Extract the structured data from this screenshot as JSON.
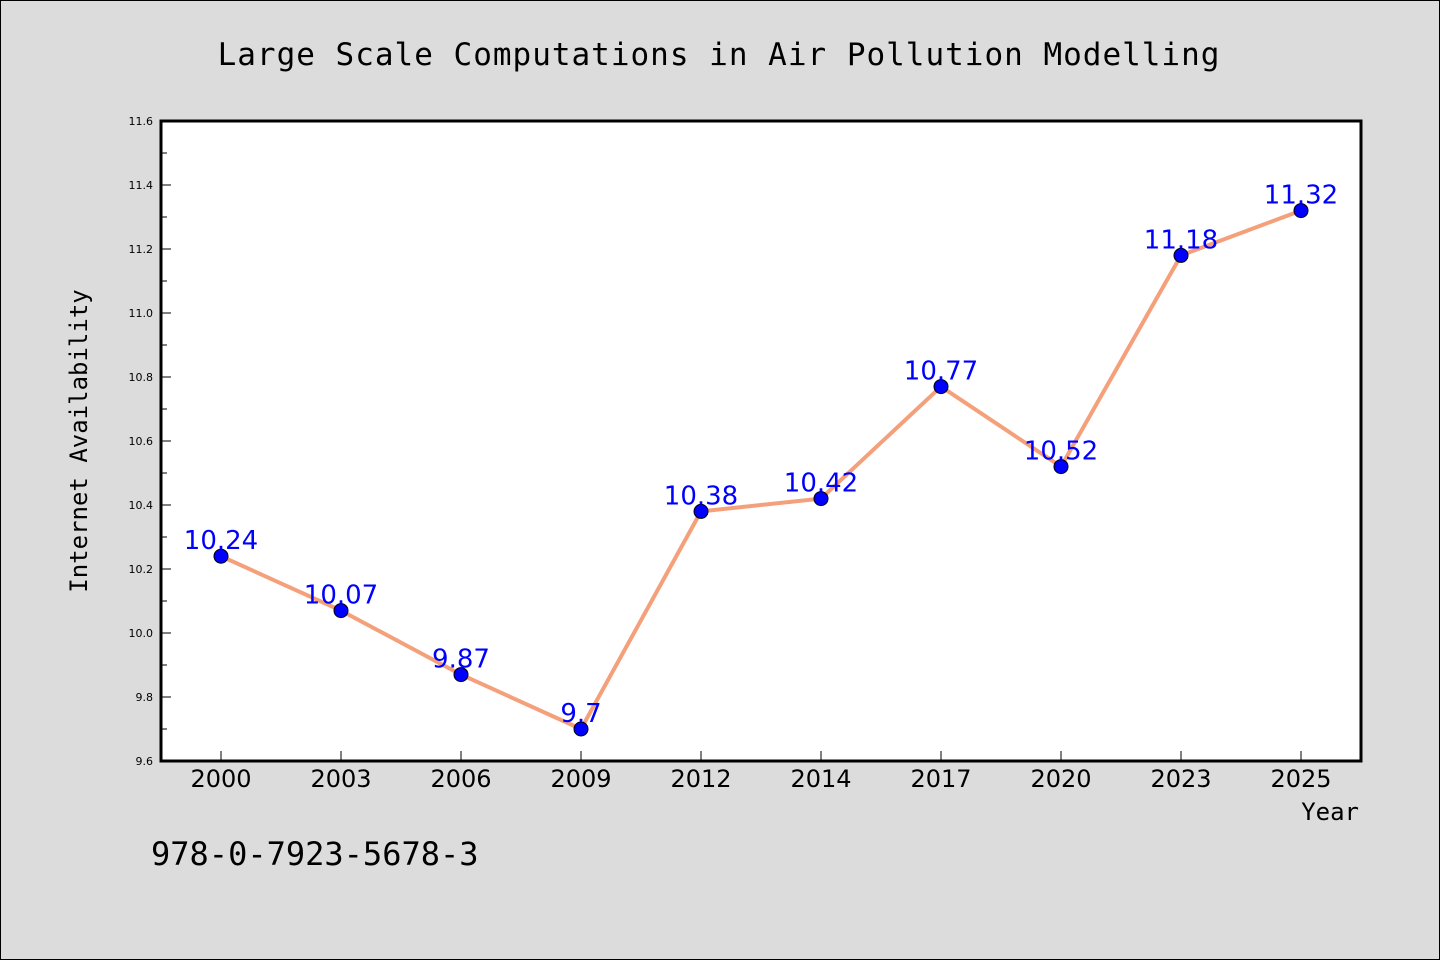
{
  "chart_data": {
    "type": "line",
    "title": "Large Scale Computations in Air Pollution Modelling",
    "xlabel": "Year",
    "ylabel": "Internet Availability",
    "categories": [
      "2000",
      "2003",
      "2006",
      "2009",
      "2012",
      "2014",
      "2017",
      "2020",
      "2023",
      "2025"
    ],
    "series": [
      {
        "values": [
          10.24,
          10.07,
          9.87,
          9.7,
          10.38,
          10.42,
          10.77,
          10.52,
          11.18,
          11.32
        ],
        "value_labels": [
          "10.24",
          "10.07",
          "9.87",
          "9.7",
          "10.38",
          "10.42",
          "10.77",
          "10.52",
          "11.18",
          "11.32"
        ],
        "line_color": "#f4a07a",
        "marker_color": "#0000ff"
      }
    ],
    "ylim": [
      9.6,
      11.6
    ],
    "yticks": [
      "9.6",
      "9.8",
      "10.0",
      "10.2",
      "10.4",
      "10.6",
      "10.8",
      "11.0",
      "11.2",
      "11.4",
      "11.6"
    ],
    "grid": false,
    "legend": "none",
    "background_color": "#dcdcdc",
    "plot_background_color": "#ffffff",
    "data_label_color": "#0000ff"
  },
  "footer": {
    "isbn": "978-0-7923-5678-3"
  }
}
